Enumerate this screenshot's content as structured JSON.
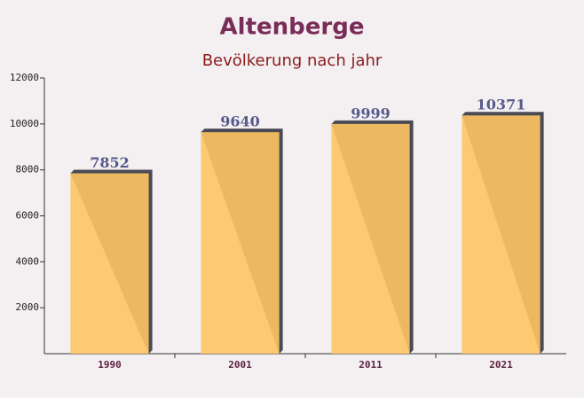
{
  "chart_data": {
    "type": "bar",
    "title": "Altenberge",
    "subtitle": "Bevölkerung nach jahr",
    "categories": [
      "1990",
      "2001",
      "2011",
      "2021"
    ],
    "values": [
      7852,
      9640,
      9999,
      10371
    ],
    "color": "#fec563",
    "ylim": [
      0,
      12000
    ],
    "yticks": [
      2000,
      4000,
      6000,
      8000,
      10000,
      12000
    ],
    "grid": false
  }
}
